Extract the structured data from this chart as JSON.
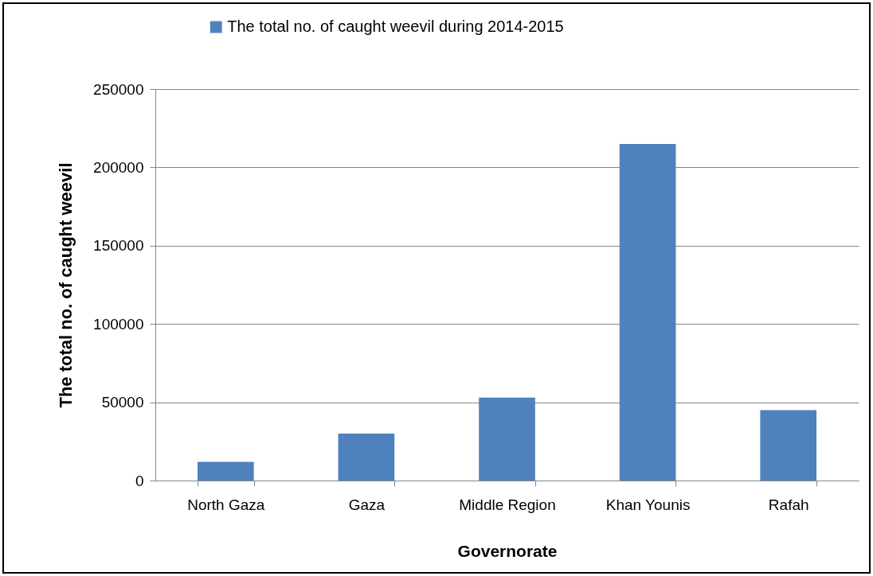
{
  "chart_data": {
    "type": "bar",
    "xlabel": "Governorate",
    "ylabel": "The total no. of caught weevil",
    "categories": [
      "North Gaza",
      "Gaza",
      "Middle Region",
      "Khan Younis",
      "Rafah"
    ],
    "series": [
      {
        "name": "The total no. of caught weevil during 2014-2015",
        "color": "#4f81bd",
        "values": [
          12000,
          30000,
          53000,
          215000,
          45000
        ]
      }
    ],
    "ylim": [
      0,
      250000
    ],
    "yticks": [
      0,
      50000,
      100000,
      150000,
      200000,
      250000
    ],
    "grid": "y",
    "legend": "top"
  }
}
